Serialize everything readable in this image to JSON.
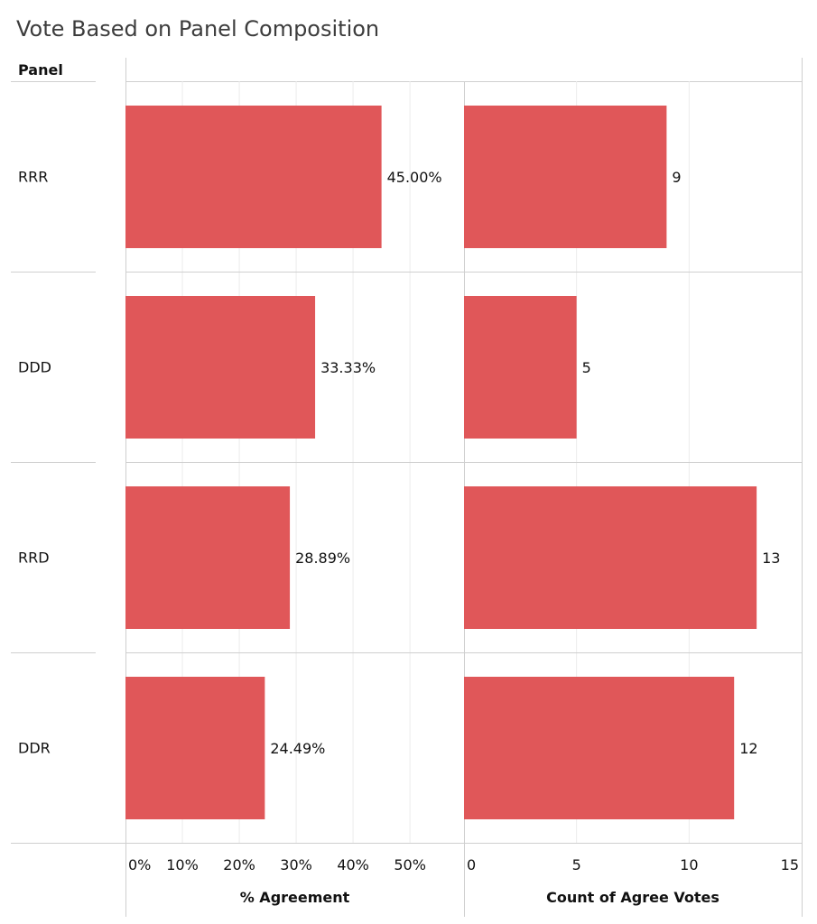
{
  "title": "Vote Based on Panel Composition",
  "chart_data": {
    "type": "bar",
    "orientation": "horizontal",
    "row_header": "Panel",
    "categories": [
      "RRR",
      "DDD",
      "RRD",
      "DDR"
    ],
    "bar_color": "#e05759",
    "grid": true,
    "panels": [
      {
        "name": "pct",
        "xlabel": "% Agreement",
        "values": [
          45.0,
          33.33,
          28.89,
          24.49
        ],
        "value_labels": [
          "45.00%",
          "33.33%",
          "28.89%",
          "24.49%"
        ],
        "ticks": [
          0,
          10,
          20,
          30,
          40,
          50
        ],
        "tick_labels": [
          "0%",
          "10%",
          "20%",
          "30%",
          "40%",
          "50%"
        ],
        "xlim": [
          0,
          59.5
        ]
      },
      {
        "name": "count",
        "xlabel": "Count of Agree Votes",
        "values": [
          9,
          5,
          13,
          12
        ],
        "value_labels": [
          "9",
          "5",
          "13",
          "12"
        ],
        "ticks": [
          0,
          5,
          10,
          15
        ],
        "tick_labels": [
          "0",
          "5",
          "10",
          "15"
        ],
        "xlim": [
          0,
          15
        ]
      }
    ]
  }
}
